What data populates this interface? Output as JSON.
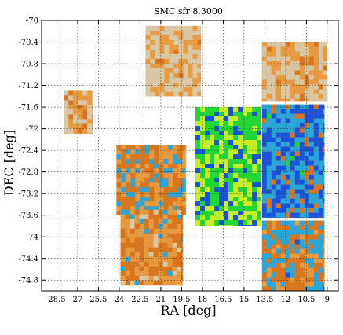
{
  "chart_data": {
    "type": "heatmap",
    "title": "SMC sfr 8.3000",
    "xlabel": "RA [deg]",
    "ylabel": "DEC [deg]",
    "x_reversed": true,
    "xlim": [
      29.6,
      8.2
    ],
    "ylim": [
      -75.0,
      -70.0
    ],
    "x_ticks": [
      28.5,
      27,
      25.5,
      24,
      22.5,
      21,
      19.5,
      18,
      16.5,
      15,
      13.5,
      12,
      10.5,
      9
    ],
    "x_tick_labels": [
      "28.5",
      "27",
      "25.5",
      "24",
      "22.5",
      "21",
      "19.5",
      "18",
      "16.5",
      "15",
      "13.5",
      "12",
      "10.5",
      "9"
    ],
    "y_ticks": [
      -70,
      -70.4,
      -70.8,
      -71.2,
      -71.6,
      -72,
      -72.4,
      -72.8,
      -73.2,
      -73.6,
      -74,
      -74.4,
      -74.8
    ],
    "y_tick_labels": [
      "-70",
      "-70.4",
      "-70.8",
      "-71.2",
      "-71.6",
      "-72",
      "-72.4",
      "-72.8",
      "-73.2",
      "-73.6",
      "-74",
      "-74.4",
      "-74.8"
    ],
    "grid": true,
    "colormap": [
      "#d9c7a3",
      "#e79a40",
      "#d8761f",
      "#2aa6d8",
      "#1a53d8",
      "#22d63a",
      "#c8ee28"
    ],
    "tiles": [
      {
        "ra": [
          18.1,
          22.1
        ],
        "dec": [
          -71.4,
          -70.1
        ],
        "level": 0.12
      },
      {
        "ra": [
          9.0,
          13.7
        ],
        "dec": [
          -71.5,
          -70.4
        ],
        "level": 0.14
      },
      {
        "ra": [
          25.9,
          28.0
        ],
        "dec": [
          -72.1,
          -71.3
        ],
        "level": 0.15
      },
      {
        "ra": [
          9.2,
          13.7
        ],
        "dec": [
          -73.65,
          -71.55
        ],
        "level": 0.55
      },
      {
        "ra": [
          9.2,
          13.7
        ],
        "dec": [
          -75.0,
          -73.7
        ],
        "level": 0.4
      },
      {
        "ra": [
          13.8,
          18.5
        ],
        "dec": [
          -73.8,
          -71.6
        ],
        "level": 0.82
      },
      {
        "ra": [
          19.2,
          24.2
        ],
        "dec": [
          -73.6,
          -72.3
        ],
        "level": 0.35
      },
      {
        "ra": [
          19.4,
          23.9
        ],
        "dec": [
          -74.9,
          -73.5
        ],
        "level": 0.28
      }
    ]
  }
}
